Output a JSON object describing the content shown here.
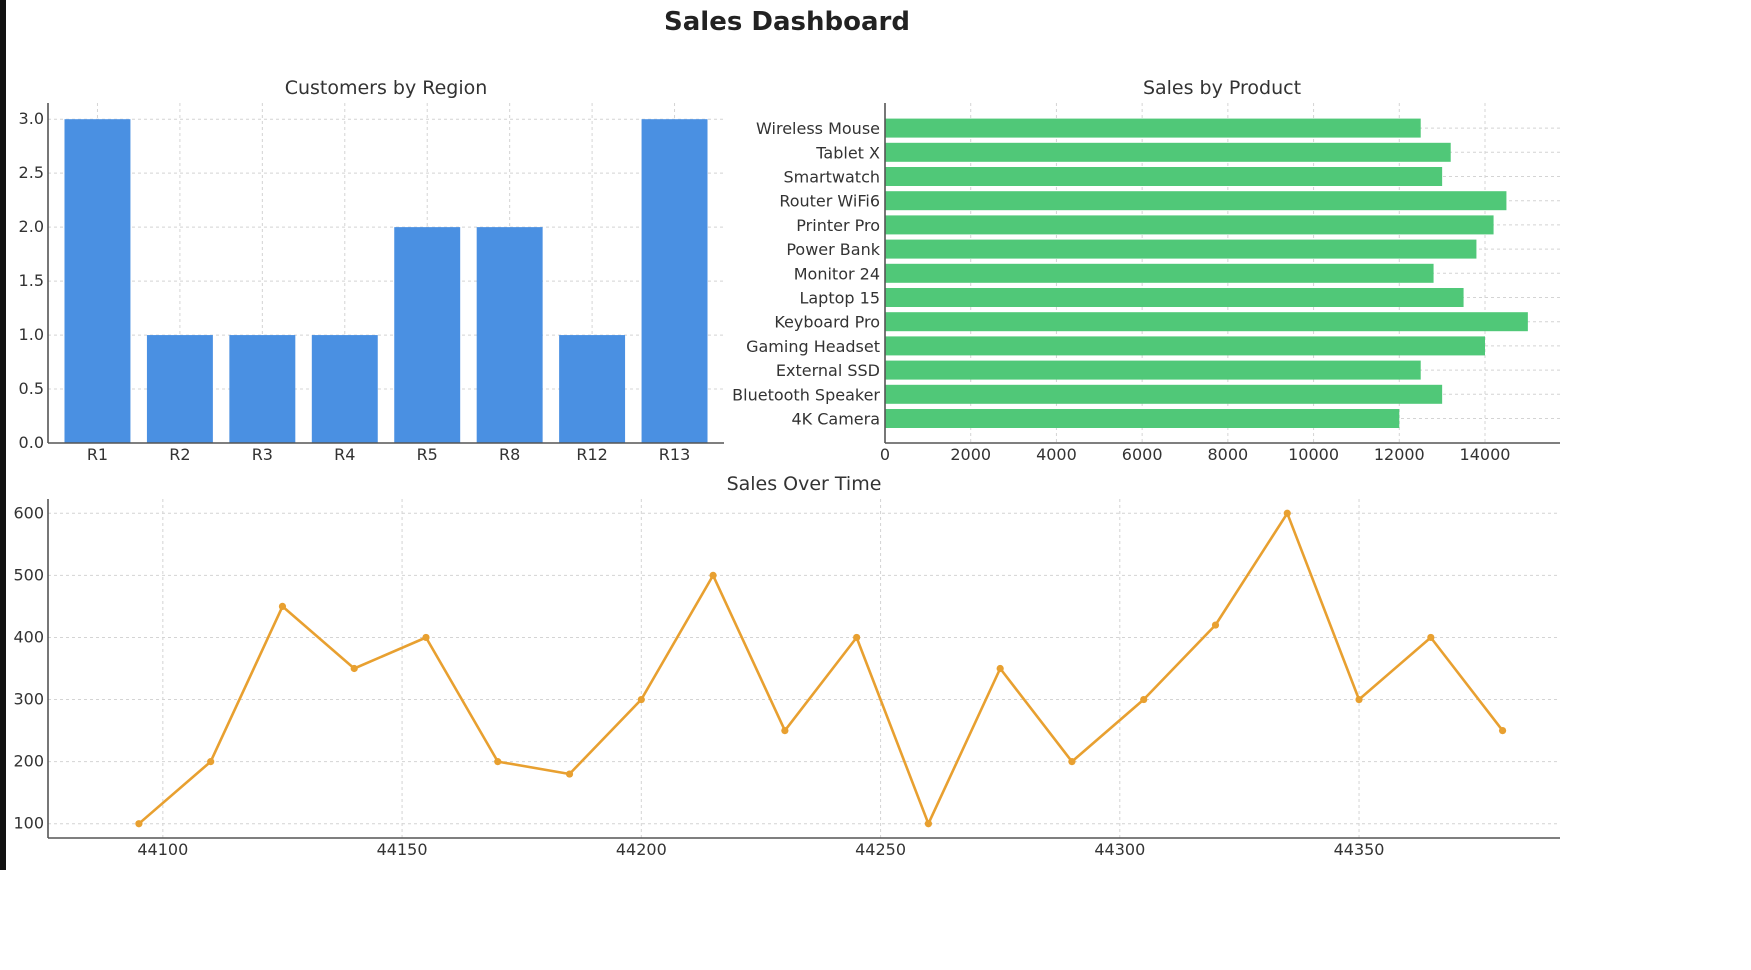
{
  "dashboard": {
    "title": "Sales Dashboard"
  },
  "colors": {
    "bar_blue": "#4a90e2",
    "bar_green": "#50c878",
    "line_orange": "#e8a030"
  },
  "chart_data": [
    {
      "id": "customers",
      "type": "bar",
      "title": "Customers by Region",
      "categories": [
        "R1",
        "R2",
        "R3",
        "R4",
        "R5",
        "R8",
        "R12",
        "R13"
      ],
      "values": [
        3,
        1,
        1,
        1,
        2,
        2,
        1,
        3
      ],
      "ylim": [
        0,
        3.15
      ],
      "yticks": [
        0.0,
        0.5,
        1.0,
        1.5,
        2.0,
        2.5,
        3.0
      ],
      "ytick_labels": [
        "0.0",
        "0.5",
        "1.0",
        "1.5",
        "2.0",
        "2.5",
        "3.0"
      ],
      "grid": true
    },
    {
      "id": "products",
      "type": "bar",
      "orientation": "horizontal",
      "title": "Sales by Product",
      "categories": [
        "4K Camera",
        "Bluetooth Speaker",
        "External SSD",
        "Gaming Headset",
        "Keyboard Pro",
        "Laptop 15",
        "Monitor 24",
        "Power Bank",
        "Printer Pro",
        "Router WiFi6",
        "Smartwatch",
        "Tablet X",
        "Wireless Mouse"
      ],
      "values": [
        12000,
        13000,
        12500,
        14000,
        15000,
        13500,
        12800,
        13800,
        14200,
        14500,
        13000,
        13200,
        12500
      ],
      "xlim": [
        0,
        15750
      ],
      "xticks": [
        0,
        2000,
        4000,
        6000,
        8000,
        10000,
        12000,
        14000
      ],
      "grid": true
    },
    {
      "id": "timeline",
      "type": "line",
      "title": "Sales Over Time",
      "x": [
        44095,
        44110,
        44125,
        44140,
        44155,
        44170,
        44185,
        44200,
        44215,
        44230,
        44245,
        44260,
        44275,
        44290,
        44305,
        44320,
        44335,
        44350,
        44365,
        44380
      ],
      "y": [
        100,
        200,
        450,
        350,
        400,
        200,
        180,
        300,
        500,
        250,
        400,
        100,
        350,
        200,
        300,
        420,
        600,
        300,
        400,
        250
      ],
      "xlim": [
        44076,
        44392
      ],
      "ylim": [
        77,
        623
      ],
      "xticks": [
        44100,
        44150,
        44200,
        44250,
        44300,
        44350
      ],
      "yticks": [
        100,
        200,
        300,
        400,
        500,
        600
      ],
      "marker": "circle",
      "grid": true
    }
  ]
}
